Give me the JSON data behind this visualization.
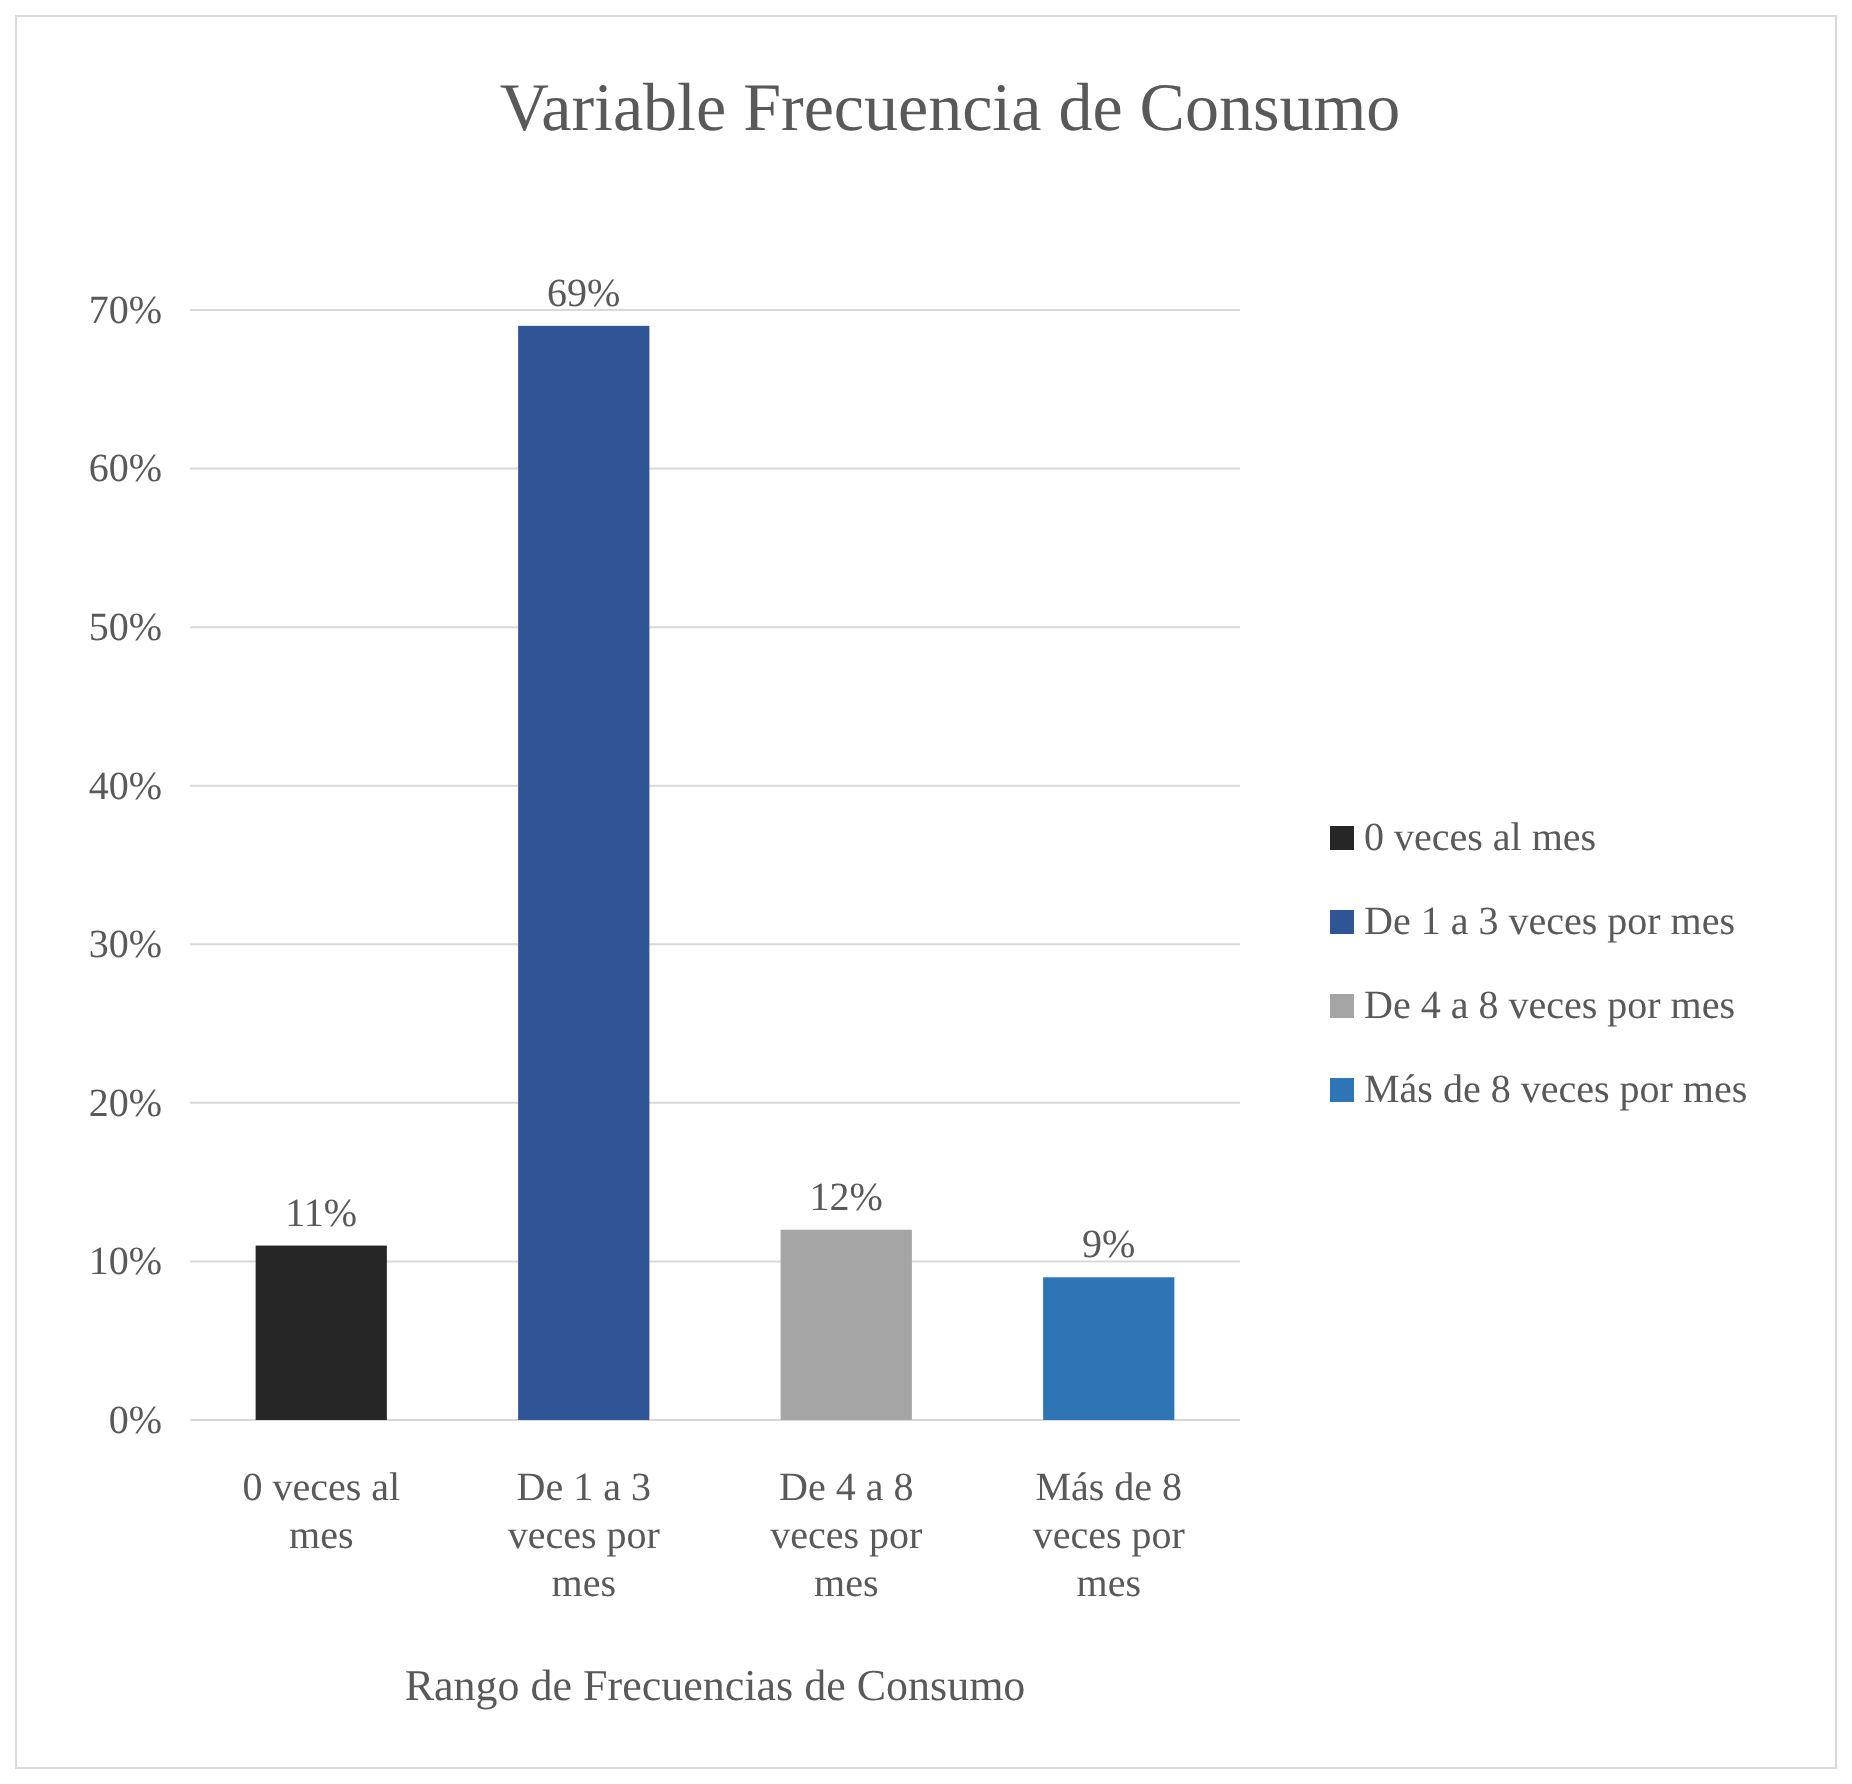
{
  "chart_data": {
    "type": "bar",
    "title": "Variable Frecuencia de Consumo",
    "xlabel": "Rango de Frecuencias de Consumo",
    "categories": [
      "0 veces al mes",
      "De 1 a 3 veces por mes",
      "De 4 a 8 veces por mes",
      "Más de 8 veces por mes"
    ],
    "series": [
      {
        "name": "0 veces al mes",
        "color": "#262626",
        "values": [
          11,
          null,
          null,
          null
        ],
        "value_labels": [
          "11%",
          null,
          null,
          null
        ]
      },
      {
        "name": "De 1 a 3 veces por mes",
        "color": "#2f5597",
        "values": [
          null,
          69,
          null,
          null
        ],
        "value_labels": [
          null,
          "69%",
          null,
          null
        ]
      },
      {
        "name": "De 4 a 8 veces por mes",
        "color": "#a5a5a5",
        "values": [
          null,
          null,
          12,
          null
        ],
        "value_labels": [
          null,
          null,
          "12%",
          null
        ]
      },
      {
        "name": "Más de 8 veces por mes",
        "color": "#2e75b6",
        "values": [
          null,
          null,
          null,
          9
        ],
        "value_labels": [
          null,
          null,
          null,
          "9%"
        ]
      }
    ],
    "ylim": [
      0,
      70
    ],
    "yticks": [
      {
        "value": 0,
        "label": "0%"
      },
      {
        "value": 10,
        "label": "10%"
      },
      {
        "value": 20,
        "label": "20%"
      },
      {
        "value": 30,
        "label": "30%"
      },
      {
        "value": 40,
        "label": "40%"
      },
      {
        "value": 50,
        "label": "50%"
      },
      {
        "value": 60,
        "label": "60%"
      },
      {
        "value": 70,
        "label": "70%"
      }
    ],
    "grid": "y",
    "legend": "right"
  }
}
